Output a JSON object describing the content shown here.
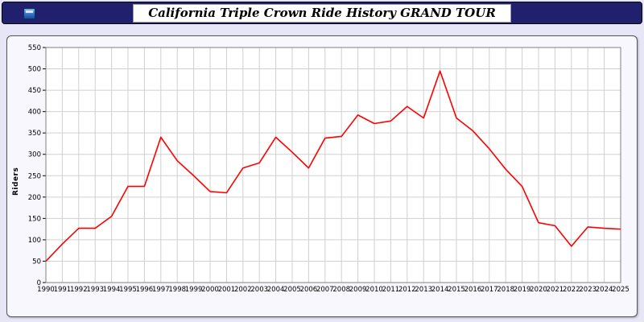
{
  "header": {
    "title": "California Triple Crown Ride History GRAND TOUR"
  },
  "chart_data": {
    "type": "line",
    "title": "California Triple Crown Ride History GRAND TOUR",
    "xlabel": "",
    "ylabel": "Riders",
    "ylim": [
      0,
      550
    ],
    "ytick_step": 50,
    "grid": true,
    "legend": "none",
    "line_color": "#ff0000",
    "x": [
      1990,
      1991,
      1992,
      1993,
      1994,
      1995,
      1996,
      1997,
      1998,
      1999,
      2000,
      2001,
      2002,
      2003,
      2004,
      2005,
      2006,
      2007,
      2008,
      2009,
      2010,
      2011,
      2012,
      2013,
      2014,
      2015,
      2016,
      2017,
      2018,
      2019,
      2020,
      2021,
      2022,
      2023,
      2024,
      2025
    ],
    "values": [
      50,
      90,
      127,
      127,
      155,
      225,
      225,
      340,
      285,
      250,
      213,
      210,
      268,
      280,
      340,
      305,
      268,
      338,
      342,
      392,
      372,
      378,
      412,
      385,
      495,
      385,
      355,
      313,
      265,
      225,
      140,
      133,
      85,
      130,
      127,
      125
    ]
  }
}
